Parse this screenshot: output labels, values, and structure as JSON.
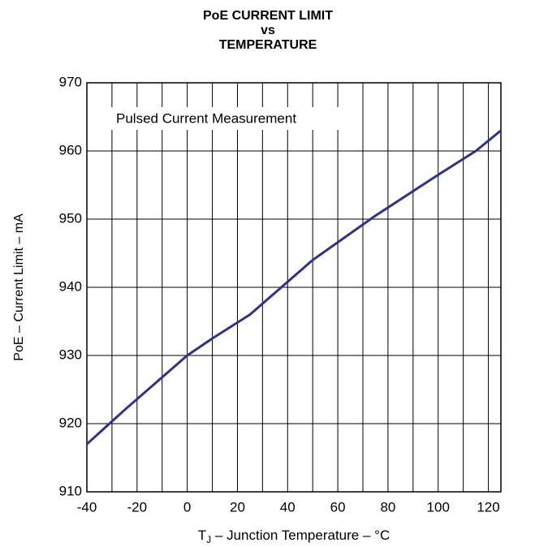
{
  "chart_data": {
    "type": "line",
    "title_lines": [
      "PoE CURRENT LIMIT",
      "vs",
      "TEMPERATURE"
    ],
    "annotation": "Pulsed Current Measurement",
    "ylabel": "PoE – Current Limit – mA",
    "xlabel_parts": [
      "T",
      "J",
      " – Junction Temperature – °C"
    ],
    "x": [
      -40,
      -25,
      0,
      10,
      25,
      50,
      75,
      100,
      115,
      125
    ],
    "series": [
      {
        "color": "#2e3192",
        "values": [
          917,
          922,
          930,
          932.5,
          936,
          944,
          950.5,
          956.5,
          960,
          963
        ]
      }
    ],
    "xlim": [
      -40,
      125
    ],
    "xticks": [
      -40,
      -20,
      0,
      20,
      40,
      60,
      80,
      100,
      120
    ],
    "xminor": [
      -30,
      -10,
      10,
      30,
      50,
      70,
      90,
      110
    ],
    "ylim": [
      910,
      970
    ],
    "yticks": [
      910,
      920,
      930,
      940,
      950,
      960,
      970
    ],
    "grid": true
  }
}
